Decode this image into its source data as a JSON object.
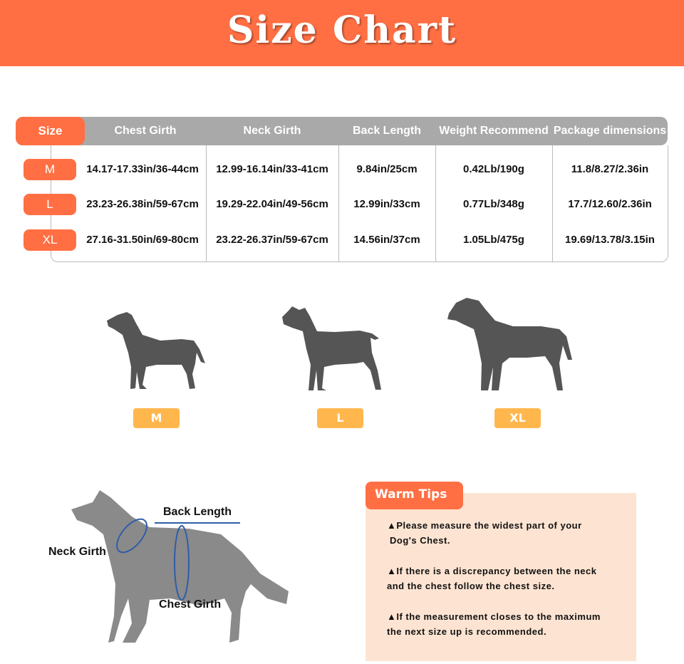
{
  "title": "Size Chart",
  "table": {
    "headers": [
      "Size",
      "Chest Girth",
      "Neck Girth",
      "Back Length",
      "Weight Recommend",
      "Package dimensions"
    ],
    "rows": [
      {
        "size": "M",
        "chest": "14.17-17.33in/36-44cm",
        "neck": "12.99-16.14in/33-41cm",
        "back": "9.84in/25cm",
        "weight": "0.42Lb/190g",
        "package": "11.8/8.27/2.36in"
      },
      {
        "size": "L",
        "chest": "23.23-26.38in/59-67cm",
        "neck": "19.29-22.04in/49-56cm",
        "back": "12.99in/33cm",
        "weight": "0.77Lb/348g",
        "package": "17.7/12.60/2.36in"
      },
      {
        "size": "XL",
        "chest": "27.16-31.50in/69-80cm",
        "neck": "23.22-26.37in/59-67cm",
        "back": "14.56in/37cm",
        "weight": "1.05Lb/475g",
        "package": "19.69/13.78/3.15in"
      }
    ]
  },
  "dogs": [
    "M",
    "L",
    "XL"
  ],
  "diagram": {
    "back": "Back Length",
    "neck": "Neck Girth",
    "chest": "Chest Girth"
  },
  "tips": {
    "title": "Warm Tips",
    "items": [
      "▲Please measure the widest part of your",
      "Dog's Chest.",
      "▲If there is a discrepancy between the neck",
      "and the chest follow the chest size.",
      "▲If the measurement closes to the maximum",
      "the next size up is recommended."
    ]
  },
  "colors": {
    "accent": "#FF6F43",
    "header_gray": "#A9A9A9",
    "size_label": "#FFB74D",
    "tips_bg": "#FDE4D2",
    "dog_dark": "#555555",
    "dog_light": "#8A8A8A",
    "measure_line": "#2F5DA8"
  }
}
